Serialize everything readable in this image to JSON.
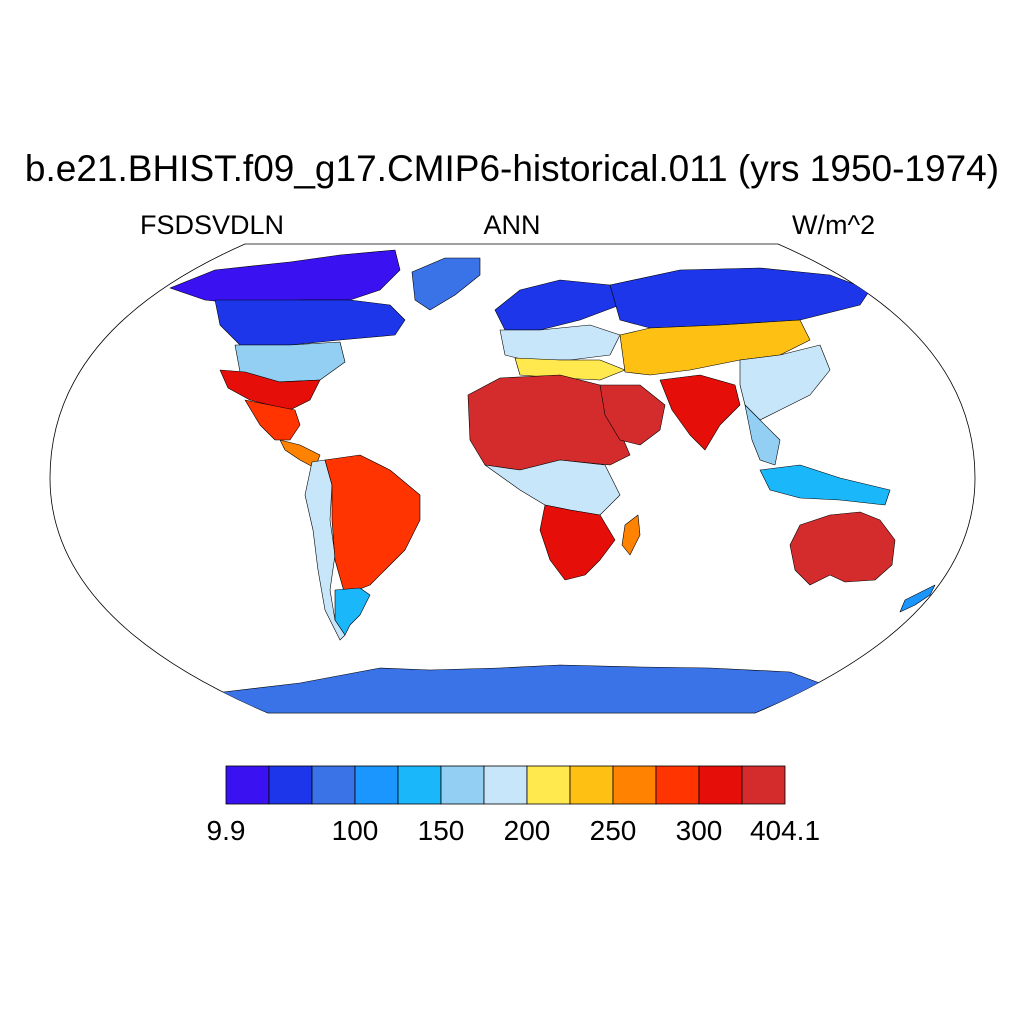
{
  "map": {
    "title": "b.e21.BHIST.f09_g17.CMIP6-historical.011 (yrs 1950-1974)",
    "variable": "FSDSVDLN",
    "season": "ANN",
    "units": "W/m^2",
    "projection": "Robinson",
    "background": "#ffffff",
    "land_only": true,
    "regions": [
      {
        "name": "arctic-north-america",
        "level": 0
      },
      {
        "name": "canada",
        "level": 1
      },
      {
        "name": "greenland",
        "level": 2
      },
      {
        "name": "northern-united-states",
        "level": 5
      },
      {
        "name": "southwest-united-states",
        "level": 11
      },
      {
        "name": "mexico",
        "level": 10
      },
      {
        "name": "central-america",
        "level": 9
      },
      {
        "name": "andes",
        "level": 6
      },
      {
        "name": "brazil",
        "level": 10
      },
      {
        "name": "patagonia",
        "level": 4
      },
      {
        "name": "scandinavia",
        "level": 1
      },
      {
        "name": "europe",
        "level": 6
      },
      {
        "name": "mediterranean",
        "level": 7
      },
      {
        "name": "sahara",
        "level": 12
      },
      {
        "name": "arabia",
        "level": 12
      },
      {
        "name": "central-africa",
        "level": 6
      },
      {
        "name": "southern-africa",
        "level": 11
      },
      {
        "name": "madagascar",
        "level": 9
      },
      {
        "name": "siberia",
        "level": 1
      },
      {
        "name": "central-asia",
        "level": 8
      },
      {
        "name": "india",
        "level": 11
      },
      {
        "name": "china",
        "level": 6
      },
      {
        "name": "southeast-asia",
        "level": 5
      },
      {
        "name": "indonesia",
        "level": 4
      },
      {
        "name": "australia",
        "level": 12
      },
      {
        "name": "new-zealand",
        "level": 3
      },
      {
        "name": "antarctica",
        "level": 2
      }
    ]
  },
  "colorbar": {
    "colors": [
      "#3a12f2",
      "#1e36ea",
      "#3a72e8",
      "#1c96ff",
      "#1ab8fa",
      "#92cff2",
      "#c8e6fa",
      "#ffe94f",
      "#ffc014",
      "#ff8200",
      "#ff3400",
      "#e60e09",
      "#d42c2c"
    ],
    "labels": [
      "9.9",
      "100",
      "150",
      "200",
      "250",
      "300",
      "404.1"
    ]
  }
}
